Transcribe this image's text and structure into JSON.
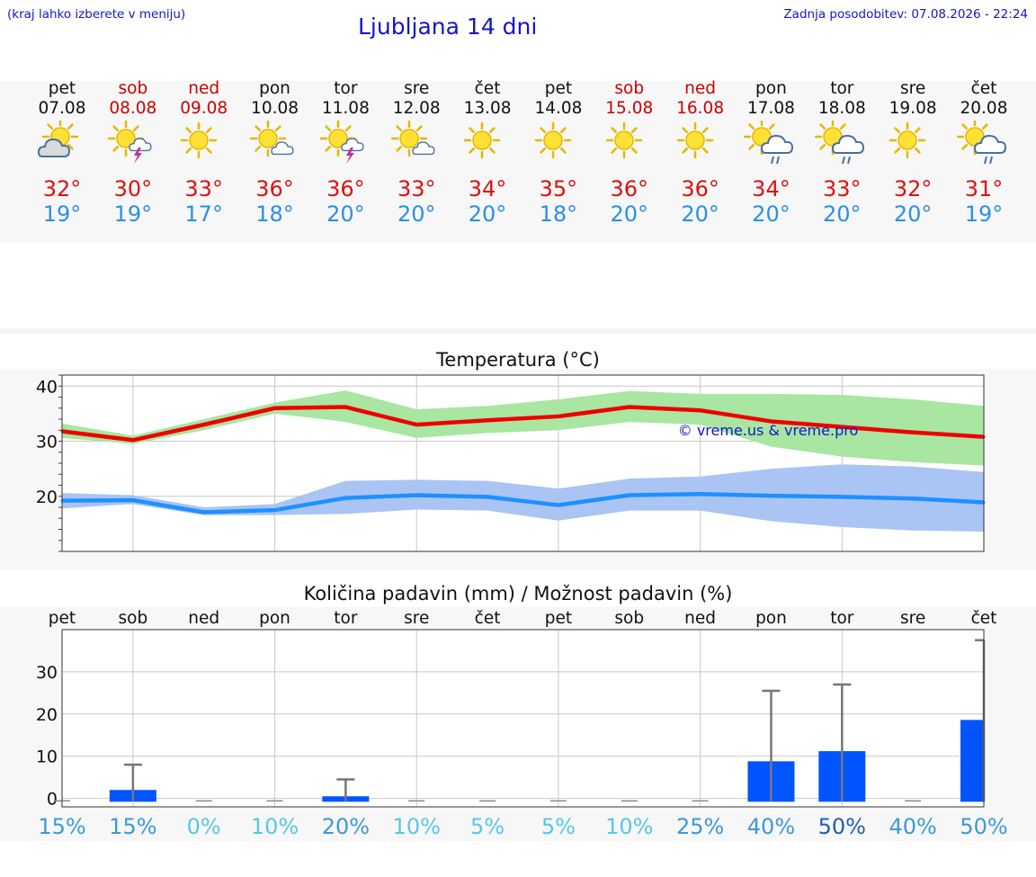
{
  "header": {
    "location_hint": "(kraj lahko izberete v meniju)",
    "title": "Ljubljana 14 dni",
    "last_update": "Zadnja posodobitev: 07.08.2026 - 22:24"
  },
  "days": [
    {
      "name": "pet",
      "date": "07.08",
      "weekend": false,
      "icon": "sun-cloud",
      "tmax": "32°",
      "tmin": "19°"
    },
    {
      "name": "sob",
      "date": "08.08",
      "weekend": true,
      "icon": "sun-thunder",
      "tmax": "30°",
      "tmin": "19°"
    },
    {
      "name": "ned",
      "date": "09.08",
      "weekend": true,
      "icon": "sun",
      "tmax": "33°",
      "tmin": "17°"
    },
    {
      "name": "pon",
      "date": "10.08",
      "weekend": false,
      "icon": "sun-small-cloud",
      "tmax": "36°",
      "tmin": "18°"
    },
    {
      "name": "tor",
      "date": "11.08",
      "weekend": false,
      "icon": "sun-thunder",
      "tmax": "36°",
      "tmin": "20°"
    },
    {
      "name": "sre",
      "date": "12.08",
      "weekend": false,
      "icon": "sun-small-cloud",
      "tmax": "33°",
      "tmin": "20°"
    },
    {
      "name": "čet",
      "date": "13.08",
      "weekend": false,
      "icon": "sun",
      "tmax": "34°",
      "tmin": "20°"
    },
    {
      "name": "pet",
      "date": "14.08",
      "weekend": false,
      "icon": "sun",
      "tmax": "35°",
      "tmin": "18°"
    },
    {
      "name": "sob",
      "date": "15.08",
      "weekend": true,
      "icon": "sun",
      "tmax": "36°",
      "tmin": "20°"
    },
    {
      "name": "ned",
      "date": "16.08",
      "weekend": true,
      "icon": "sun",
      "tmax": "36°",
      "tmin": "20°"
    },
    {
      "name": "pon",
      "date": "17.08",
      "weekend": false,
      "icon": "sun-cloud-rain",
      "tmax": "34°",
      "tmin": "20°"
    },
    {
      "name": "tor",
      "date": "18.08",
      "weekend": false,
      "icon": "sun-cloud-rain",
      "tmax": "33°",
      "tmin": "20°"
    },
    {
      "name": "sre",
      "date": "19.08",
      "weekend": false,
      "icon": "sun",
      "tmax": "32°",
      "tmin": "20°"
    },
    {
      "name": "čet",
      "date": "20.08",
      "weekend": false,
      "icon": "sun-cloud-rain",
      "tmax": "31°",
      "tmin": "19°"
    }
  ],
  "colors": {
    "max": "#ee0000",
    "max_band": "#a8e6a1",
    "min": "#1e90ff",
    "min_band": "#aac4f4",
    "bar": "#0055ff",
    "errbar": "#777777",
    "weekend": "#cc0000",
    "link": "#1515cc"
  },
  "chart_data": [
    {
      "type": "line",
      "title": "Temperatura (°C)",
      "watermark": "© vreme.us & vreme.pro",
      "x": [
        "07.08",
        "08.08",
        "09.08",
        "10.08",
        "11.08",
        "12.08",
        "13.08",
        "14.08",
        "15.08",
        "16.08",
        "17.08",
        "18.08",
        "19.08",
        "20.08"
      ],
      "ylim": [
        10,
        42
      ],
      "yticks": [
        20,
        30,
        40
      ],
      "grid": true,
      "series": [
        {
          "role": "max",
          "values": [
            31.8,
            30.2,
            33,
            36,
            36.2,
            33,
            33.8,
            34.5,
            36.2,
            35.6,
            33.6,
            32.6,
            31.6,
            30.8
          ],
          "band_low": [
            30.6,
            29.5,
            32,
            35,
            33.5,
            30.6,
            31.5,
            32.0,
            33.5,
            33.0,
            29.0,
            27.2,
            26.2,
            25.6
          ],
          "band_high": [
            33.2,
            31.0,
            34,
            37,
            39.2,
            35.8,
            36.4,
            37.6,
            39.1,
            38.6,
            38.6,
            38.4,
            37.6,
            36.4
          ]
        },
        {
          "role": "min",
          "values": [
            19.2,
            19.3,
            17.1,
            17.5,
            19.7,
            20.2,
            19.9,
            18.4,
            20.2,
            20.4,
            20.1,
            19.9,
            19.6,
            18.9
          ],
          "band_low": [
            17.8,
            18.6,
            16.6,
            16.6,
            16.8,
            17.6,
            17.4,
            15.6,
            17.4,
            17.4,
            15.5,
            14.4,
            13.8,
            13.6
          ],
          "band_high": [
            20.6,
            20.2,
            18.0,
            18.6,
            22.8,
            23.0,
            22.8,
            21.4,
            23.2,
            23.6,
            25.0,
            25.8,
            25.4,
            24.4
          ]
        }
      ]
    },
    {
      "type": "bar",
      "title": "Količina padavin (mm) / Možnost padavin (%)",
      "categories": [
        "pet",
        "sob",
        "ned",
        "pon",
        "tor",
        "sre",
        "čet",
        "pet",
        "sob",
        "ned",
        "pon",
        "tor",
        "sre",
        "čet"
      ],
      "ylim": [
        -2,
        40
      ],
      "yticks": [
        0,
        10,
        20,
        30
      ],
      "values": [
        0,
        2,
        0,
        0,
        0.5,
        0,
        0,
        0,
        0,
        0,
        8.8,
        11.2,
        0,
        18.6
      ],
      "error_high": [
        0,
        8,
        0,
        0,
        4.5,
        0,
        0,
        0,
        0,
        0,
        25.5,
        27,
        0,
        37.5
      ],
      "probability": [
        "15%",
        "15%",
        "0%",
        "10%",
        "20%",
        "10%",
        "5%",
        "5%",
        "10%",
        "25%",
        "40%",
        "50%",
        "40%",
        "50%"
      ],
      "probability_colors": [
        "#3a9ad9",
        "#3a9ad9",
        "#55c8e6",
        "#55c8e6",
        "#3a9ad9",
        "#55c8e6",
        "#55c8e6",
        "#55c8e6",
        "#55c8e6",
        "#3a9ad9",
        "#3a9ad9",
        "#1e5fb3",
        "#3a9ad9",
        "#3a9ad9"
      ]
    }
  ]
}
